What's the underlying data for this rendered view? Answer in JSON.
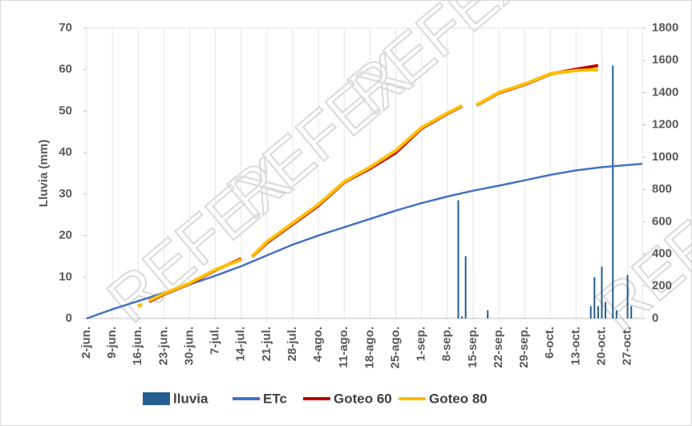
{
  "chart_data": {
    "type": "combo",
    "watermark": "REFEX",
    "y_label": "Lluvia (mm)",
    "xlim": [
      0,
      151
    ],
    "xticks": [
      {
        "value": 0,
        "label": "2-jun."
      },
      {
        "value": 7,
        "label": "9-jun."
      },
      {
        "value": 14,
        "label": "16-jun."
      },
      {
        "value": 21,
        "label": "23-jun."
      },
      {
        "value": 28,
        "label": "30-jun."
      },
      {
        "value": 35,
        "label": "7-jul."
      },
      {
        "value": 42,
        "label": "14-jul."
      },
      {
        "value": 49,
        "label": "21-jul."
      },
      {
        "value": 56,
        "label": "28-jul."
      },
      {
        "value": 63,
        "label": "4-ago."
      },
      {
        "value": 70,
        "label": "11-ago."
      },
      {
        "value": 77,
        "label": "18-ago."
      },
      {
        "value": 84,
        "label": "25-ago."
      },
      {
        "value": 91,
        "label": "1-sep."
      },
      {
        "value": 98,
        "label": "8-sep."
      },
      {
        "value": 105,
        "label": "15-sep."
      },
      {
        "value": 112,
        "label": "22-sep."
      },
      {
        "value": 119,
        "label": "29-sep."
      },
      {
        "value": 126,
        "label": "6-oct."
      },
      {
        "value": 133,
        "label": "13-oct."
      },
      {
        "value": 140,
        "label": "20-oct."
      },
      {
        "value": 147,
        "label": "27-oct."
      }
    ],
    "ylim": [
      0,
      70
    ],
    "yticks": [
      0,
      10,
      20,
      30,
      40,
      50,
      60,
      70
    ],
    "y2lim": [
      0,
      1800
    ],
    "y2ticks": [
      0,
      200,
      400,
      600,
      800,
      1000,
      1200,
      1400,
      1600,
      1800
    ],
    "series": [
      {
        "name": "lluvia",
        "type": "bar",
        "color": "#255e91",
        "x": [
          101,
          102,
          103,
          109,
          137,
          138,
          139,
          140,
          141,
          143,
          144,
          147,
          148
        ],
        "values": [
          28.5,
          0.5,
          15,
          2,
          3,
          10,
          3,
          12.5,
          4,
          61,
          2,
          10.5,
          3
        ]
      },
      {
        "name": "ETc",
        "type": "line",
        "axis": "y2",
        "color": "#4472c4",
        "x": [
          0,
          7,
          14,
          21,
          28,
          35,
          42,
          49,
          56,
          63,
          70,
          77,
          84,
          91,
          98,
          105,
          112,
          119,
          126,
          133,
          140,
          147,
          151
        ],
        "values": [
          0,
          57,
          108,
          159,
          211,
          265,
          324,
          391,
          458,
          514,
          566,
          617,
          669,
          715,
          756,
          792,
          823,
          856,
          890,
          918,
          938,
          951,
          959
        ]
      },
      {
        "name": "Goteo 60",
        "type": "line",
        "axis": "y2",
        "color": "#c00000",
        "x": [
          14,
          15,
          null,
          17,
          21,
          28,
          35,
          42,
          null,
          45,
          49,
          56,
          63,
          70,
          77,
          84,
          91,
          98,
          102,
          null,
          106,
          112,
          119,
          126,
          133,
          139
        ],
        "values": [
          75,
          88,
          null,
          105,
          150,
          216,
          300,
          370,
          null,
          384,
          470,
          585,
          700,
          845,
          930,
          1028,
          1178,
          1270,
          1316,
          null,
          1322,
          1398,
          1450,
          1515,
          1545,
          1568
        ]
      },
      {
        "name": "Goteo 80",
        "type": "line",
        "axis": "y2",
        "color": "#ffc000",
        "x": [
          14,
          15,
          null,
          17,
          21,
          28,
          35,
          42,
          null,
          45,
          49,
          56,
          63,
          70,
          77,
          84,
          91,
          98,
          102,
          null,
          106,
          112,
          119,
          126,
          133,
          139
        ],
        "values": [
          75,
          90,
          null,
          110,
          154,
          219,
          303,
          365,
          null,
          386,
          476,
          591,
          707,
          848,
          938,
          1041,
          1183,
          1273,
          1319,
          null,
          1324,
          1401,
          1453,
          1517,
          1537,
          1543
        ]
      }
    ]
  }
}
